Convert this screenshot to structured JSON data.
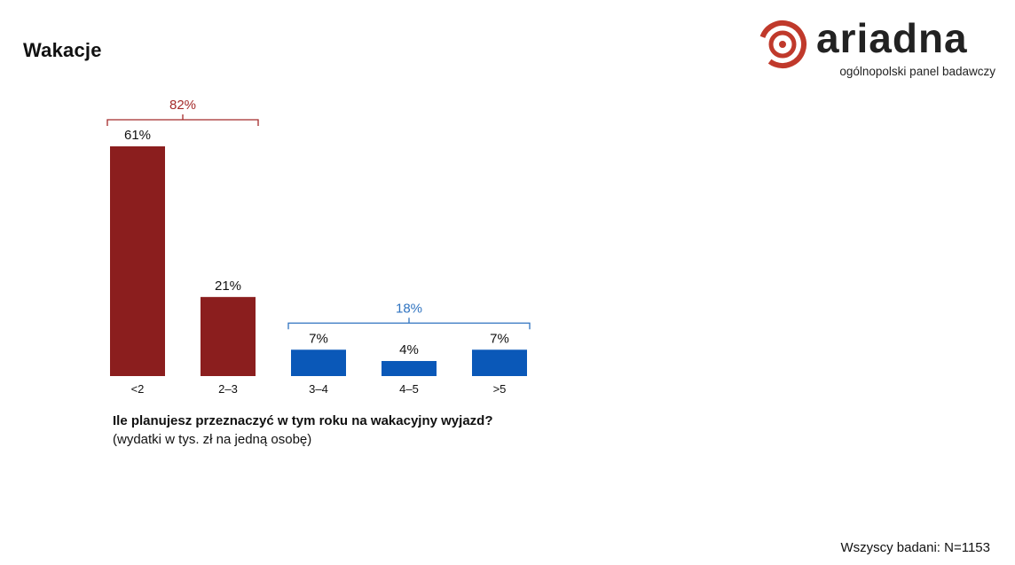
{
  "page": {
    "title": "Wakacje"
  },
  "logo": {
    "word": "ariadna",
    "tagline": "ogólnopolski panel badawczy",
    "accent": "#c0392b"
  },
  "chart_data": {
    "type": "bar",
    "categories": [
      "<2",
      "2–3",
      "3–4",
      "4–5",
      ">5"
    ],
    "values": [
      61,
      21,
      7,
      4,
      7
    ],
    "value_labels": [
      "61%",
      "21%",
      "7%",
      "4%",
      "7%"
    ],
    "colors": [
      "#8b1e1e",
      "#8b1e1e",
      "#0a58b8",
      "#0a58b8",
      "#0a58b8"
    ],
    "ylim": [
      0,
      61
    ],
    "groups": [
      {
        "label": "82%",
        "from": 0,
        "to": 1,
        "color": "#a52a2a"
      },
      {
        "label": "18%",
        "from": 2,
        "to": 4,
        "color": "#2f73c0"
      }
    ],
    "grid": false,
    "legend": "none"
  },
  "question": {
    "text": "Ile planujesz przeznaczyć w tym roku na wakacyjny wyjazd?",
    "note": "(wydatki w tys. zł na jedną osobę)"
  },
  "footer": {
    "sample": "Wszyscy badani: N=1153"
  }
}
